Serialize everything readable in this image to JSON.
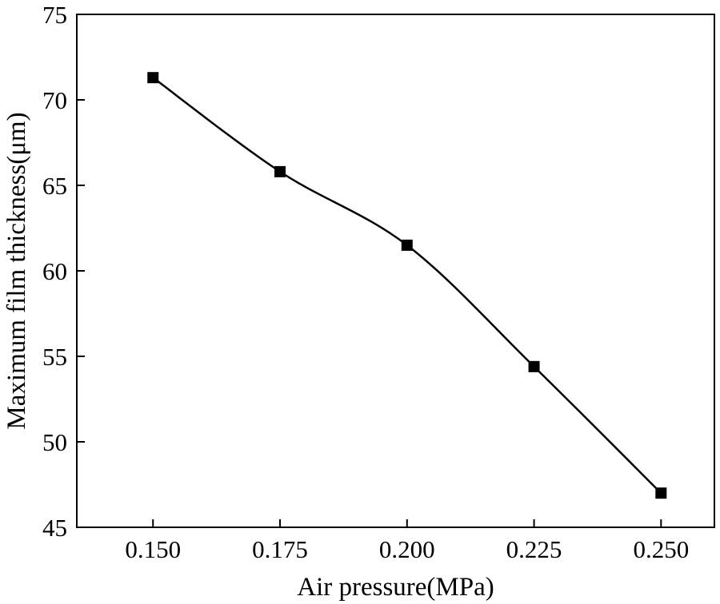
{
  "chart_data": {
    "type": "line",
    "title": "",
    "xlabel": "Air pressure(MPa)",
    "ylabel": "Maximum film thickness(μm)",
    "xlim": [
      0.135,
      0.2605
    ],
    "ylim": [
      45,
      75
    ],
    "xticks": [
      "0.150",
      "0.175",
      "0.200",
      "0.225",
      "0.250"
    ],
    "xtick_values": [
      0.15,
      0.175,
      0.2,
      0.225,
      0.25
    ],
    "yticks": [
      "45",
      "50",
      "55",
      "60",
      "65",
      "70",
      "75"
    ],
    "ytick_values": [
      45,
      50,
      55,
      60,
      65,
      70,
      75
    ],
    "grid": false,
    "series": [
      {
        "name": "Maximum film thickness",
        "marker": "square",
        "line": "smooth",
        "color": "#000000",
        "x": [
          0.15,
          0.175,
          0.2,
          0.225,
          0.25
        ],
        "values": [
          71.3,
          65.8,
          61.5,
          54.4,
          47.0
        ]
      }
    ]
  }
}
